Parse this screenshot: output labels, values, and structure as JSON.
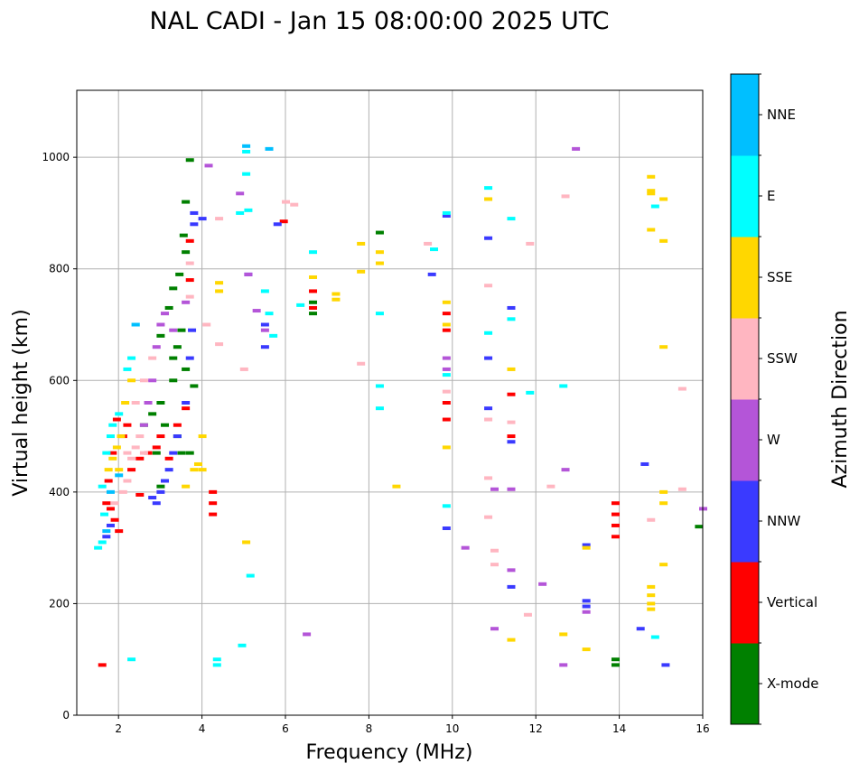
{
  "chart_data": {
    "type": "scatter",
    "title": "NAL CADI - Jan 15 08:00:00 2025 UTC",
    "xlabel": "Frequency (MHz)",
    "ylabel": "Virtual height (km)",
    "xlim": [
      1,
      16
    ],
    "ylim": [
      0,
      1120
    ],
    "xticks": [
      2,
      4,
      6,
      8,
      10,
      12,
      14,
      16
    ],
    "yticks": [
      0,
      200,
      400,
      600,
      800,
      1000
    ],
    "grid": true,
    "colorbar": {
      "title": "Azimuth Direction",
      "categories": [
        "X-mode",
        "Vertical",
        "NNW",
        "W",
        "SSW",
        "SSE",
        "E",
        "NNE"
      ],
      "colors": [
        "#008000",
        "#ff0000",
        "#3a3aff",
        "#b455d8",
        "#ffb6c1",
        "#ffd700",
        "#00ffff",
        "#00bfff"
      ]
    },
    "series": [
      {
        "name": "X-mode",
        "points": [
          [
            3.7,
            995
          ],
          [
            3.6,
            920
          ],
          [
            3.55,
            860
          ],
          [
            3.6,
            830
          ],
          [
            3.45,
            790
          ],
          [
            3.3,
            765
          ],
          [
            3.2,
            730
          ],
          [
            3.5,
            690
          ],
          [
            3.4,
            660
          ],
          [
            3.6,
            620
          ],
          [
            3.3,
            600
          ],
          [
            3.0,
            560
          ],
          [
            2.8,
            540
          ],
          [
            3.1,
            520
          ],
          [
            3.4,
            500
          ],
          [
            3.5,
            470
          ],
          [
            2.9,
            470
          ],
          [
            3.0,
            410
          ],
          [
            3.8,
            590
          ],
          [
            3.7,
            470
          ],
          [
            6.65,
            720
          ],
          [
            6.65,
            740
          ],
          [
            8.25,
            865
          ],
          [
            13.9,
            90
          ],
          [
            13.9,
            100
          ],
          [
            15.9,
            338
          ],
          [
            3.3,
            640
          ],
          [
            3.0,
            680
          ],
          [
            2.6,
            520
          ]
        ]
      },
      {
        "name": "Vertical",
        "points": [
          [
            1.6,
            90
          ],
          [
            1.7,
            380
          ],
          [
            1.8,
            370
          ],
          [
            1.9,
            350
          ],
          [
            2.0,
            330
          ],
          [
            1.75,
            420
          ],
          [
            1.85,
            470
          ],
          [
            1.95,
            530
          ],
          [
            2.1,
            500
          ],
          [
            2.3,
            440
          ],
          [
            2.5,
            460
          ],
          [
            2.7,
            470
          ],
          [
            2.9,
            480
          ],
          [
            3.1,
            420
          ],
          [
            3.2,
            460
          ],
          [
            3.4,
            520
          ],
          [
            3.6,
            550
          ],
          [
            3.7,
            780
          ],
          [
            3.7,
            850
          ],
          [
            4.25,
            360
          ],
          [
            4.25,
            380
          ],
          [
            4.25,
            400
          ],
          [
            5.95,
            885
          ],
          [
            6.65,
            730
          ],
          [
            6.65,
            760
          ],
          [
            9.85,
            560
          ],
          [
            9.85,
            530
          ],
          [
            9.85,
            690
          ],
          [
            9.85,
            720
          ],
          [
            11.4,
            575
          ],
          [
            11.4,
            500
          ],
          [
            13.9,
            320
          ],
          [
            13.9,
            340
          ],
          [
            13.9,
            360
          ],
          [
            13.9,
            380
          ],
          [
            2.5,
            395
          ],
          [
            2.2,
            520
          ],
          [
            3.0,
            500
          ]
        ]
      },
      {
        "name": "NNW",
        "points": [
          [
            1.7,
            320
          ],
          [
            1.8,
            340
          ],
          [
            2.9,
            380
          ],
          [
            3.0,
            400
          ],
          [
            3.2,
            440
          ],
          [
            3.3,
            470
          ],
          [
            3.4,
            500
          ],
          [
            3.6,
            560
          ],
          [
            3.7,
            640
          ],
          [
            3.75,
            690
          ],
          [
            3.8,
            900
          ],
          [
            3.8,
            880
          ],
          [
            5.1,
            790
          ],
          [
            5.5,
            700
          ],
          [
            5.5,
            660
          ],
          [
            5.8,
            880
          ],
          [
            9.85,
            335
          ],
          [
            9.85,
            895
          ],
          [
            9.5,
            790
          ],
          [
            10.85,
            855
          ],
          [
            10.85,
            640
          ],
          [
            10.85,
            550
          ],
          [
            11.4,
            230
          ],
          [
            11.4,
            490
          ],
          [
            11.4,
            730
          ],
          [
            13.2,
            305
          ],
          [
            13.2,
            205
          ],
          [
            13.2,
            195
          ],
          [
            14.5,
            155
          ],
          [
            14.6,
            450
          ],
          [
            15.1,
            90
          ],
          [
            4.0,
            890
          ],
          [
            2.8,
            390
          ],
          [
            3.1,
            420
          ]
        ]
      },
      {
        "name": "W",
        "points": [
          [
            2.6,
            520
          ],
          [
            2.7,
            560
          ],
          [
            2.8,
            600
          ],
          [
            2.9,
            660
          ],
          [
            3.0,
            700
          ],
          [
            3.1,
            720
          ],
          [
            3.3,
            690
          ],
          [
            3.6,
            740
          ],
          [
            4.15,
            985
          ],
          [
            4.9,
            935
          ],
          [
            5.1,
            790
          ],
          [
            5.3,
            725
          ],
          [
            5.5,
            690
          ],
          [
            6.5,
            145
          ],
          [
            9.85,
            620
          ],
          [
            9.85,
            640
          ],
          [
            10.3,
            300
          ],
          [
            11.0,
            405
          ],
          [
            11.0,
            155
          ],
          [
            11.4,
            260
          ],
          [
            11.4,
            405
          ],
          [
            12.15,
            235
          ],
          [
            12.7,
            440
          ],
          [
            12.65,
            90
          ],
          [
            12.95,
            1015
          ],
          [
            13.2,
            185
          ],
          [
            16.0,
            370
          ]
        ]
      },
      {
        "name": "SSW",
        "points": [
          [
            2.1,
            400
          ],
          [
            2.2,
            420
          ],
          [
            2.3,
            460
          ],
          [
            2.4,
            480
          ],
          [
            2.5,
            500
          ],
          [
            2.4,
            560
          ],
          [
            2.6,
            600
          ],
          [
            2.8,
            640
          ],
          [
            3.7,
            810
          ],
          [
            3.7,
            750
          ],
          [
            4.1,
            700
          ],
          [
            4.4,
            890
          ],
          [
            4.4,
            665
          ],
          [
            5.0,
            620
          ],
          [
            6.0,
            920
          ],
          [
            6.2,
            915
          ],
          [
            7.8,
            630
          ],
          [
            9.4,
            845
          ],
          [
            9.85,
            580
          ],
          [
            10.85,
            530
          ],
          [
            10.85,
            425
          ],
          [
            10.85,
            355
          ],
          [
            10.85,
            770
          ],
          [
            11.0,
            295
          ],
          [
            11.0,
            270
          ],
          [
            11.4,
            525
          ],
          [
            11.8,
            180
          ],
          [
            11.85,
            845
          ],
          [
            12.35,
            410
          ],
          [
            12.7,
            930
          ],
          [
            14.75,
            350
          ],
          [
            15.5,
            405
          ],
          [
            15.5,
            585
          ],
          [
            2.2,
            470
          ],
          [
            2.6,
            470
          ],
          [
            1.9,
            380
          ]
        ]
      },
      {
        "name": "SSE",
        "points": [
          [
            1.75,
            440
          ],
          [
            1.85,
            460
          ],
          [
            1.95,
            480
          ],
          [
            2.05,
            500
          ],
          [
            2.15,
            560
          ],
          [
            2.3,
            600
          ],
          [
            4.0,
            500
          ],
          [
            3.8,
            440
          ],
          [
            3.9,
            450
          ],
          [
            4.0,
            440
          ],
          [
            3.6,
            410
          ],
          [
            4.4,
            760
          ],
          [
            4.4,
            775
          ],
          [
            5.05,
            310
          ],
          [
            6.65,
            785
          ],
          [
            7.2,
            755
          ],
          [
            7.2,
            745
          ],
          [
            7.8,
            795
          ],
          [
            7.8,
            845
          ],
          [
            8.25,
            830
          ],
          [
            8.25,
            810
          ],
          [
            8.65,
            410
          ],
          [
            9.85,
            740
          ],
          [
            9.85,
            700
          ],
          [
            9.85,
            480
          ],
          [
            10.85,
            925
          ],
          [
            11.4,
            620
          ],
          [
            11.4,
            135
          ],
          [
            12.65,
            145
          ],
          [
            13.2,
            118
          ],
          [
            13.2,
            300
          ],
          [
            14.75,
            965
          ],
          [
            14.75,
            935
          ],
          [
            14.75,
            870
          ],
          [
            14.75,
            230
          ],
          [
            14.75,
            215
          ],
          [
            14.75,
            200
          ],
          [
            14.75,
            190
          ],
          [
            15.05,
            925
          ],
          [
            15.05,
            850
          ],
          [
            15.05,
            660
          ],
          [
            15.05,
            400
          ],
          [
            15.05,
            380
          ],
          [
            15.05,
            270
          ],
          [
            14.75,
            940
          ],
          [
            2.0,
            440
          ]
        ]
      },
      {
        "name": "E",
        "points": [
          [
            1.5,
            300
          ],
          [
            1.6,
            310
          ],
          [
            1.65,
            360
          ],
          [
            1.6,
            410
          ],
          [
            1.7,
            470
          ],
          [
            1.8,
            500
          ],
          [
            2.0,
            540
          ],
          [
            2.2,
            620
          ],
          [
            2.3,
            100
          ],
          [
            2.4,
            700
          ],
          [
            4.35,
            90
          ],
          [
            4.35,
            100
          ],
          [
            4.9,
            900
          ],
          [
            5.05,
            1010
          ],
          [
            5.05,
            970
          ],
          [
            5.1,
            905
          ],
          [
            5.15,
            250
          ],
          [
            5.5,
            760
          ],
          [
            5.6,
            720
          ],
          [
            5.7,
            680
          ],
          [
            6.35,
            735
          ],
          [
            6.65,
            830
          ],
          [
            8.25,
            720
          ],
          [
            8.25,
            590
          ],
          [
            8.25,
            550
          ],
          [
            9.55,
            835
          ],
          [
            9.85,
            900
          ],
          [
            9.85,
            610
          ],
          [
            9.85,
            375
          ],
          [
            10.85,
            945
          ],
          [
            10.85,
            685
          ],
          [
            11.4,
            890
          ],
          [
            11.4,
            710
          ],
          [
            11.85,
            578
          ],
          [
            12.65,
            590
          ],
          [
            14.85,
            912
          ],
          [
            14.85,
            140
          ],
          [
            4.95,
            125
          ],
          [
            2.3,
            640
          ],
          [
            1.85,
            520
          ]
        ]
      },
      {
        "name": "NNE",
        "points": [
          [
            1.7,
            330
          ],
          [
            1.8,
            400
          ],
          [
            2.0,
            430
          ],
          [
            2.4,
            700
          ],
          [
            5.05,
            1020
          ],
          [
            5.6,
            1015
          ]
        ]
      }
    ]
  }
}
